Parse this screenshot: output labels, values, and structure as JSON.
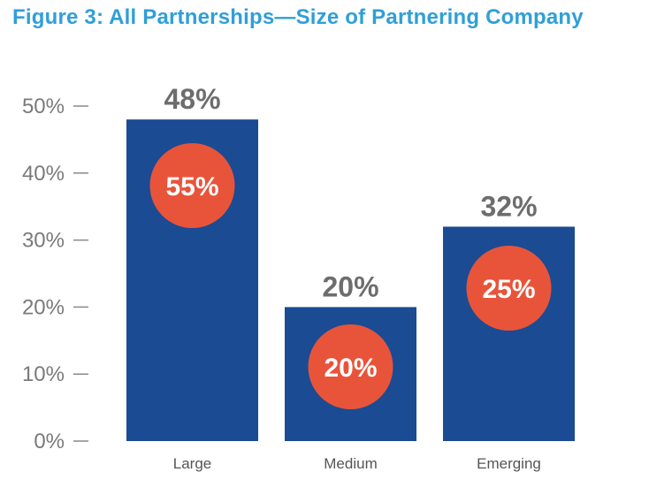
{
  "chart_data": {
    "type": "bar",
    "title": "Figure 3:  All Partnerships—Size of Partnering Company",
    "categories": [
      "Large",
      "Medium",
      "Emerging"
    ],
    "series": [
      {
        "values": [
          48,
          20,
          32
        ]
      },
      {
        "values": [
          55,
          20,
          25
        ]
      }
    ],
    "bar_labels": [
      "48%",
      "20%",
      "32%"
    ],
    "overlay_labels": [
      "55%",
      "20%",
      "25%"
    ],
    "yticks": [
      "0%",
      "10%",
      "20%",
      "30%",
      "40%",
      "50%"
    ],
    "ytick_values": [
      0,
      10,
      20,
      30,
      40,
      50
    ],
    "ylim": [
      0,
      50
    ],
    "xlabel": "",
    "ylabel": "",
    "grid": false,
    "legend": "none",
    "colors": {
      "bar": "#1a4b93",
      "overlay": "#e8543a",
      "title": "#2f9fd8",
      "value_text": "#6d6d6d",
      "axis_text": "#7a7a7a"
    }
  }
}
